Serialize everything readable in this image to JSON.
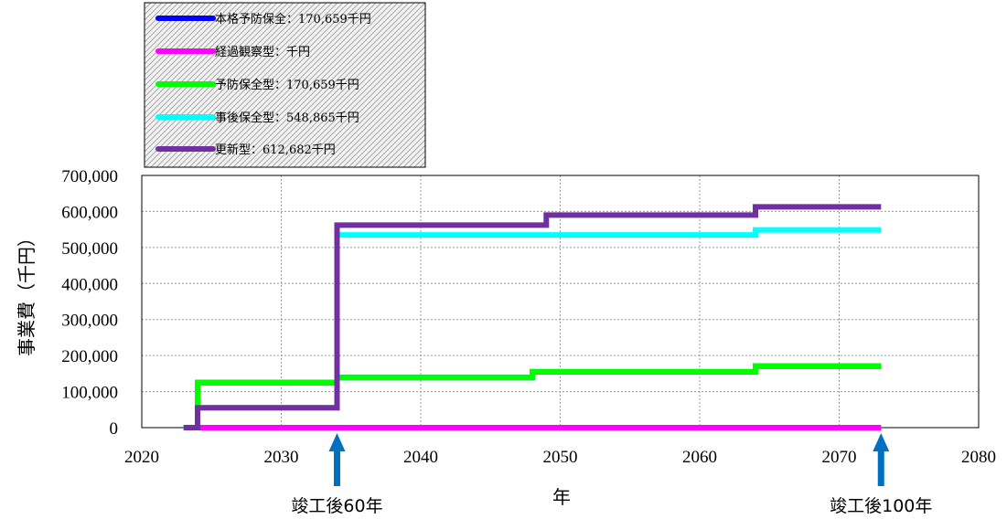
{
  "chart_data": {
    "type": "line",
    "xlabel": "年",
    "ylabel": "事業費（千円）",
    "xlim": [
      2020,
      2080
    ],
    "ylim": [
      0,
      700000
    ],
    "x_ticks": [
      2020,
      2030,
      2040,
      2050,
      2060,
      2070,
      2080
    ],
    "x_tick_labels": [
      "2020",
      "2030",
      "2040",
      "2050",
      "2060",
      "2070",
      "2080"
    ],
    "y_ticks": [
      0,
      100000,
      200000,
      300000,
      400000,
      500000,
      600000,
      700000
    ],
    "y_tick_labels": [
      "0",
      "100,000",
      "200,000",
      "300,000",
      "400,000",
      "500,000",
      "600,000",
      "700,000"
    ],
    "grid": true,
    "legend_position": "top-left",
    "series": [
      {
        "name": "本格予防保全：170,659千円",
        "color": "#0000ff",
        "x": [
          2023,
          2024,
          2024,
          2034,
          2034,
          2048,
          2048,
          2064,
          2064,
          2073
        ],
        "y": [
          0,
          0,
          125000,
          125000,
          139000,
          139000,
          155000,
          155000,
          170659,
          170659
        ]
      },
      {
        "name": "経過観察型：千円",
        "color": "#ff00ff",
        "x": [
          2023,
          2073
        ],
        "y": [
          0,
          0
        ]
      },
      {
        "name": "予防保全型：170,659千円",
        "color": "#00ff00",
        "x": [
          2023,
          2024,
          2024,
          2034,
          2034,
          2048,
          2048,
          2064,
          2064,
          2073
        ],
        "y": [
          0,
          0,
          125000,
          125000,
          139000,
          139000,
          155000,
          155000,
          170659,
          170659
        ]
      },
      {
        "name": "事後保全型：548,865千円",
        "color": "#00ffff",
        "x": [
          2023,
          2024,
          2024,
          2034,
          2034,
          2064,
          2064,
          2073
        ],
        "y": [
          0,
          0,
          55000,
          55000,
          535000,
          535000,
          548865,
          548865
        ]
      },
      {
        "name": "更新型：612,682千円",
        "color": "#7030a0",
        "x": [
          2023,
          2024,
          2024,
          2034,
          2034,
          2049,
          2049,
          2064,
          2064,
          2073
        ],
        "y": [
          0,
          0,
          55000,
          55000,
          562000,
          562000,
          590000,
          590000,
          612682,
          612682
        ]
      }
    ],
    "annotations": [
      {
        "label": "竣工後60年",
        "x": 2034,
        "color": "#0070c0"
      },
      {
        "label": "竣工後100年",
        "x": 2073,
        "color": "#0070c0"
      }
    ]
  }
}
